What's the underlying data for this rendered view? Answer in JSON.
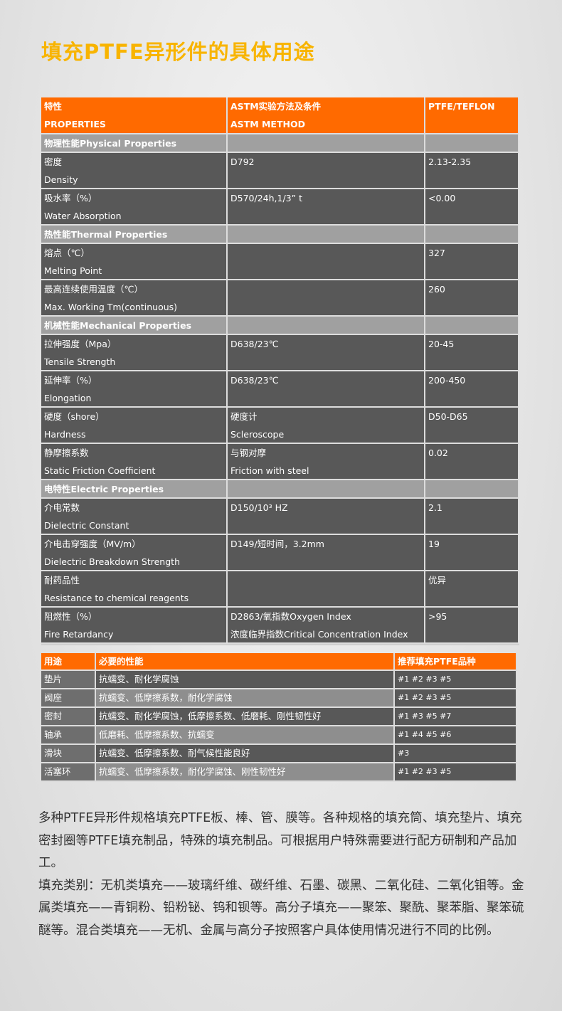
{
  "title": "填充PTFE异形件的具体用途",
  "properties_table": {
    "header": [
      [
        "特性",
        "PROPERTIES"
      ],
      [
        "ASTM实验方法及条件",
        "ASTM METHOD"
      ],
      [
        "PTFE/TEFLON"
      ]
    ],
    "rows": [
      {
        "section": "物理性能Physical Properties"
      },
      {
        "cells": [
          [
            "密度",
            "Density"
          ],
          [
            "D792"
          ],
          [
            "2.13-2.35"
          ]
        ]
      },
      {
        "cells": [
          [
            "吸水率（%）",
            "Water Absorption"
          ],
          [
            "D570/24h,1/3” t"
          ],
          [
            "<0.00"
          ]
        ]
      },
      {
        "section": "热性能Thermal Properties"
      },
      {
        "cells": [
          [
            "熔点（℃）",
            "Melting Point"
          ],
          [],
          [
            "327"
          ]
        ]
      },
      {
        "cells": [
          [
            "最高连续使用温度（℃）",
            "Max. Working Tm(continuous)"
          ],
          [],
          [
            "260"
          ]
        ]
      },
      {
        "section": "机械性能Mechanical Properties"
      },
      {
        "cells": [
          [
            "拉伸强度（Mpa）",
            "Tensile Strength"
          ],
          [
            "D638/23℃"
          ],
          [
            "20-45"
          ]
        ]
      },
      {
        "cells": [
          [
            "延伸率（%）",
            "Elongation"
          ],
          [
            "D638/23℃"
          ],
          [
            "200-450"
          ]
        ]
      },
      {
        "cells": [
          [
            "硬度（shore）",
            "Hardness"
          ],
          [
            "硬度计",
            "Scleroscope"
          ],
          [
            "D50-D65"
          ]
        ]
      },
      {
        "cells": [
          [
            "静摩擦系数",
            "Static Friction Coefficient"
          ],
          [
            "与钢对摩",
            "Friction with steel"
          ],
          [
            "0.02"
          ]
        ]
      },
      {
        "section": "电特性Electric Properties"
      },
      {
        "cells": [
          [
            "介电常数",
            "Dielectric Constant"
          ],
          [
            "D150/10³ HZ"
          ],
          [
            "2.1"
          ]
        ]
      },
      {
        "cells": [
          [
            "介电击穿强度（MV/m）",
            "Dielectric Breakdown Strength"
          ],
          [
            "D149/短时间，3.2mm"
          ],
          [
            "19"
          ]
        ]
      },
      {
        "cells": [
          [
            "耐药品性",
            "Resistance to chemical reagents"
          ],
          [],
          [
            "优异"
          ]
        ]
      },
      {
        "cells": [
          [
            "阻燃性（%）",
            "Fire Retardancy"
          ],
          [
            "D2863/氧指数Oxygen Index",
            "浓度临界指数Critical Concentration Index"
          ],
          [
            ">95"
          ]
        ]
      }
    ]
  },
  "filler_table": {
    "header": [
      "用途",
      "必要的性能",
      "推荐填充PTFE品种"
    ],
    "rows": [
      [
        "垫片",
        "抗蠕变、耐化学腐蚀",
        "#1 #2 #3 #5"
      ],
      [
        "阀座",
        "抗蠕变、低摩擦系数，耐化学腐蚀",
        "#1 #2 #3 #5"
      ],
      [
        "密封",
        "抗蠕变、耐化学腐蚀，低摩擦系数、低磨耗、刚性韧性好",
        "#1 #3 #5 #7"
      ],
      [
        "轴承",
        "低磨耗、低摩擦系数、抗蠕变",
        "#1 #4 #5 #6"
      ],
      [
        "滑块",
        "抗蠕变、低摩擦系数、耐气候性能良好",
        "#3"
      ],
      [
        "活塞环",
        "抗蠕变、低摩擦系数，耐化学腐蚀、刚性韧性好",
        "#1 #2 #3 #5"
      ]
    ]
  },
  "paragraphs": [
    "多种PTFE异形件规格填充PTFE板、棒、管、膜等。各种规格的填充筒、填充垫片、填充密封圈等PTFE填充制品，特殊的填充制品。可根据用户特殊需要进行配方研制和产品加工。",
    "填充类别：无机类填充——玻璃纤维、碳纤维、石墨、碳黑、二氧化硅、二氧化钼等。金属类填充——青铜粉、铅粉铋、钨和钡等。高分子填充——聚笨、聚酰、聚苯脂、聚笨硫醚等。混合类填充——无机、金属与高分子按照客户具体使用情况进行不同的比例。"
  ]
}
